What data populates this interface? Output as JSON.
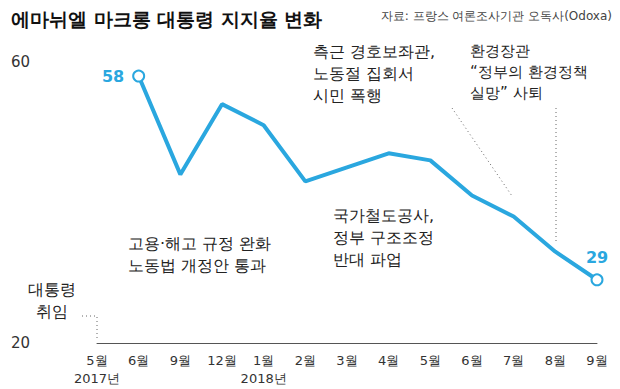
{
  "chart_data": {
    "type": "line",
    "title": "에마뉘엘 마크롱 대통령 지지율 변화",
    "source": "자료: 프랑스 여론조사기관 오독사(Odoxa)",
    "categories": [
      "5월\n2017년",
      "6월",
      "9월",
      "12월",
      "1월\n2018년",
      "2월",
      "3월",
      "4월",
      "5월",
      "6월",
      "7월",
      "8월",
      "9월"
    ],
    "values": [
      null,
      58,
      44,
      54,
      51,
      43,
      45,
      47,
      46,
      41,
      38,
      33,
      29
    ],
    "value_labels": [
      null,
      "58",
      null,
      null,
      null,
      null,
      null,
      null,
      null,
      null,
      null,
      null,
      "29"
    ],
    "color": "#2aa7df",
    "marker": "circle",
    "ylim": [
      20,
      60
    ],
    "yticks": [
      20,
      60
    ],
    "grid": false,
    "annotations": [
      "대통령\n취임",
      "고용·해고 규정 완화\n노동법 개정안 통과",
      "국가철도공사,\n정부 구조조정\n반대 파업",
      "측근 경호보좌관,\n노동절 집회서\n시민 폭행",
      "환경장관\n“정부의 환경정책\n실망” 사퇴"
    ]
  }
}
